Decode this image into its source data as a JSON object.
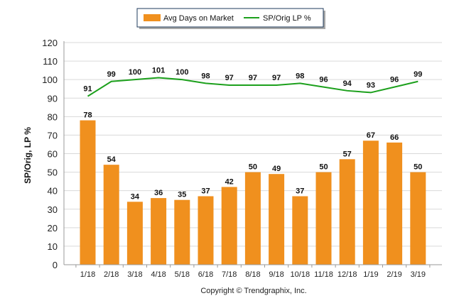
{
  "chart_data": {
    "type": "bar",
    "categories": [
      "1/18",
      "2/18",
      "3/18",
      "4/18",
      "5/18",
      "6/18",
      "7/18",
      "8/18",
      "9/18",
      "10/18",
      "11/18",
      "12/18",
      "1/19",
      "2/19",
      "3/19"
    ],
    "series": [
      {
        "name": "Avg Days on Market",
        "kind": "bar",
        "color": "#f0901e",
        "values": [
          78,
          54,
          34,
          36,
          35,
          37,
          42,
          50,
          49,
          37,
          50,
          57,
          67,
          66,
          50
        ]
      },
      {
        "name": "SP/Orig LP %",
        "kind": "line",
        "color": "#1ca01c",
        "values": [
          91,
          99,
          100,
          101,
          100,
          98,
          97,
          97,
          97,
          98,
          96,
          94,
          93,
          96,
          99
        ]
      }
    ],
    "ylabel": "SP/Orig, LP %",
    "xlabel": "",
    "ylim": [
      0,
      120
    ],
    "yticks": [
      0,
      10,
      20,
      30,
      40,
      50,
      60,
      70,
      80,
      90,
      100,
      110,
      120
    ],
    "grid": true,
    "legend_position": "top-center"
  },
  "footer": "Copyright © Trendgraphix, Inc.",
  "colors": {
    "grid": "#d9d9d9",
    "axis": "#9a9a9a",
    "legend_border": "#1f3b5c"
  }
}
